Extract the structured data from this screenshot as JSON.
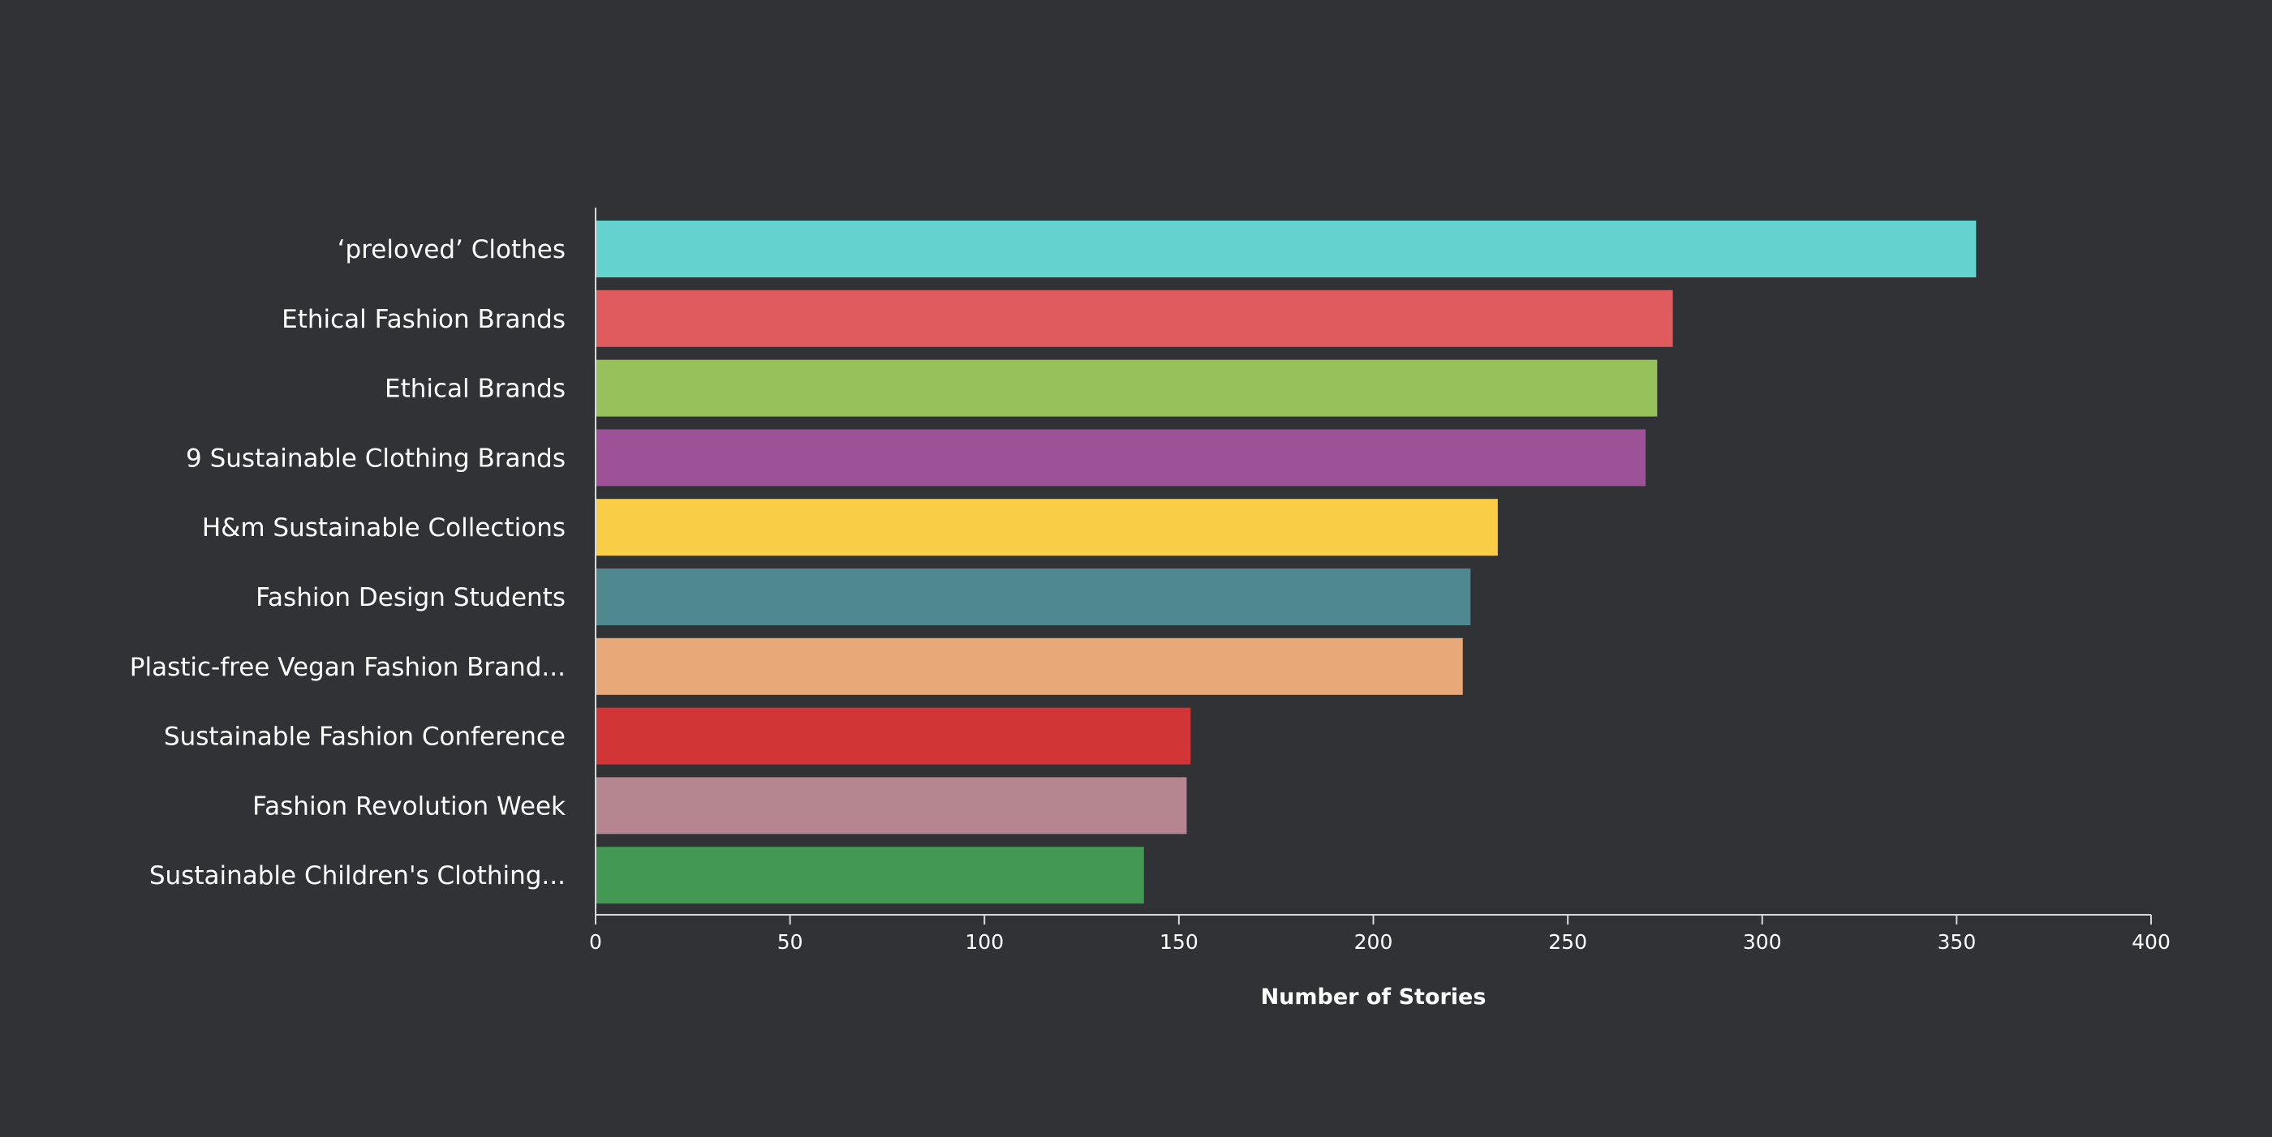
{
  "chart_data": {
    "type": "bar",
    "orientation": "horizontal",
    "categories": [
      "‘preloved’ Clothes",
      "Ethical Fashion Brands",
      "Ethical Brands",
      "9 Sustainable Clothing Brands",
      "H&m Sustainable Collections",
      "Fashion Design Students",
      "Plastic-free Vegan Fashion Brand...",
      "Sustainable Fashion Conference",
      "Fashion Revolution Week",
      "Sustainable Children's Clothing..."
    ],
    "values": [
      355,
      277,
      273,
      270,
      232,
      225,
      223,
      153,
      152,
      141
    ],
    "colors": [
      "#64d2cf",
      "#e05b5e",
      "#97c15b",
      "#9d5298",
      "#f9cd46",
      "#508890",
      "#e8a877",
      "#d13535",
      "#b58590",
      "#439953"
    ],
    "xlabel": "Number of Stories",
    "ylabel": "",
    "xlim": [
      0,
      400
    ],
    "xticks": [
      0,
      50,
      100,
      150,
      200,
      250,
      300,
      350,
      400
    ],
    "grid": false
  }
}
